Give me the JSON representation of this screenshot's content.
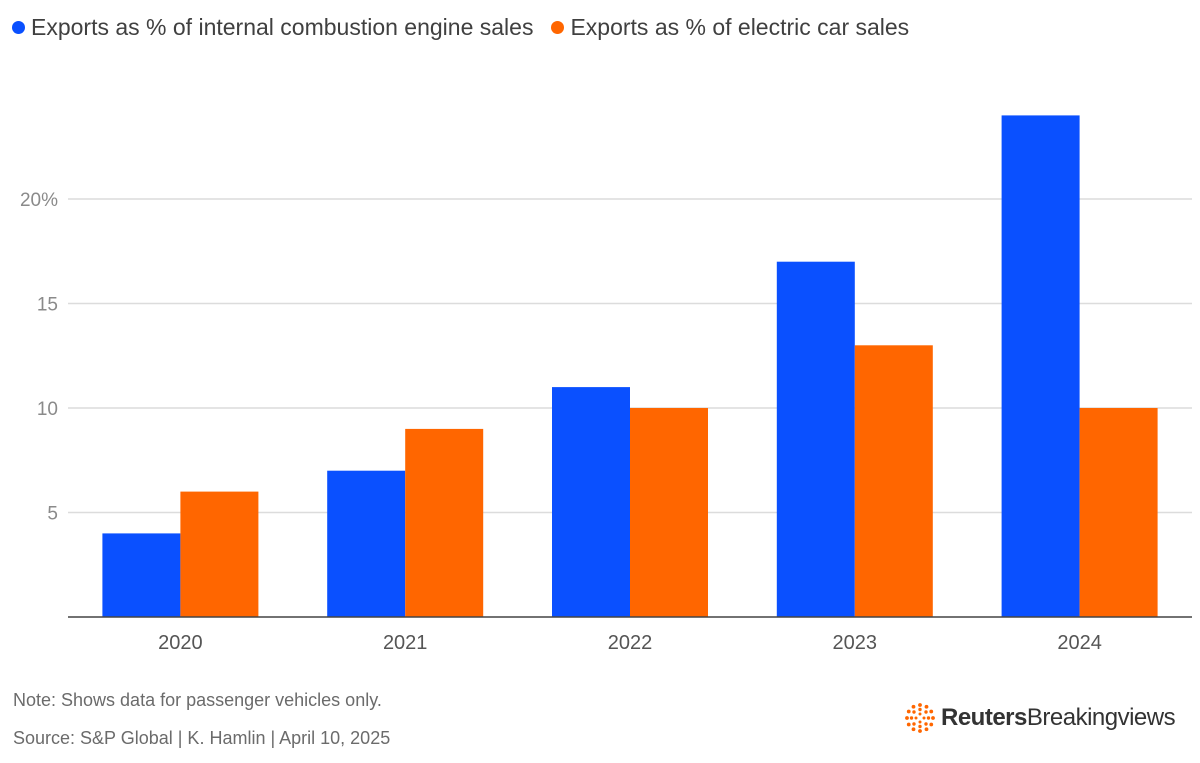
{
  "chart_data": {
    "type": "bar",
    "title": "",
    "xlabel": "",
    "ylabel": "",
    "categories": [
      "2020",
      "2021",
      "2022",
      "2023",
      "2024"
    ],
    "series": [
      {
        "name": "Exports as % of internal combustion engine sales",
        "color": "#0a50ff",
        "values": [
          4,
          7,
          11,
          17,
          24
        ]
      },
      {
        "name": "Exports as % of electric car sales",
        "color": "#ff6600",
        "values": [
          6,
          9,
          10,
          13,
          10
        ]
      }
    ],
    "ylim": [
      0,
      25
    ],
    "yticks": [
      {
        "value": 5,
        "label": "5"
      },
      {
        "value": 10,
        "label": "10"
      },
      {
        "value": 15,
        "label": "15"
      },
      {
        "value": 20,
        "label": "20%"
      }
    ],
    "grid": true,
    "legend": "top-left"
  },
  "footer": {
    "note": "Note: Shows data for passenger vehicles only.",
    "source": "Source: S&P Global | K. Hamlin | April 10, 2025"
  },
  "brand": {
    "name_strong": "Reuters",
    "name_light": "Breakingviews",
    "logo_icon": "reuters-dots-icon",
    "accent": "#ff6600"
  }
}
